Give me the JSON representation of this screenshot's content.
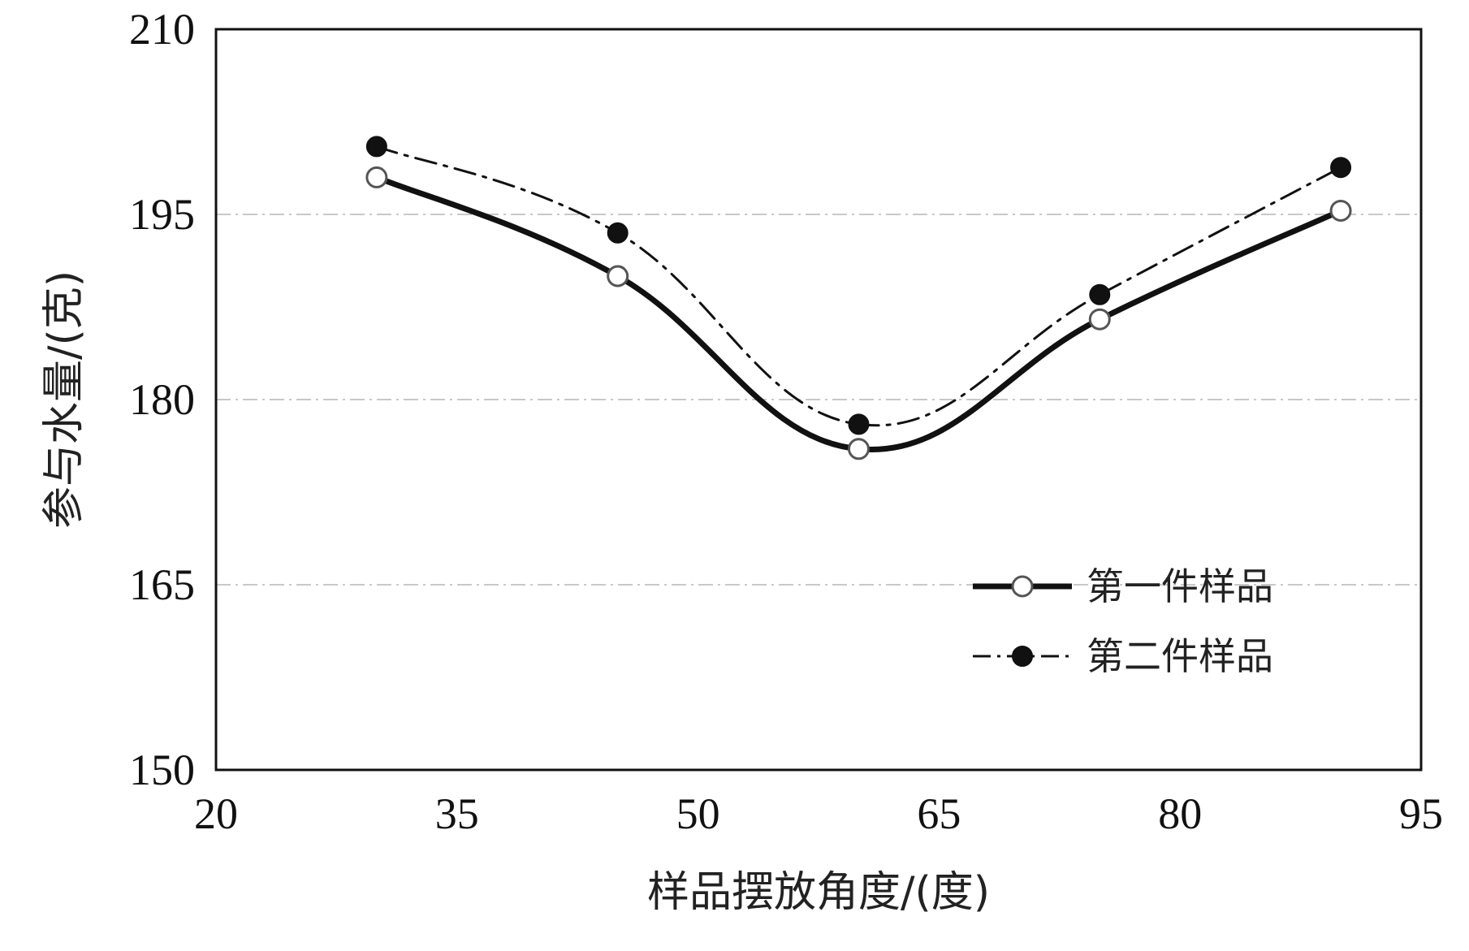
{
  "chart_data": {
    "type": "line",
    "title": "",
    "xlabel": "样品摆放角度/(度)",
    "ylabel": "参与水量/(克)",
    "xlim": [
      20,
      95
    ],
    "ylim": [
      150,
      210
    ],
    "x_ticks": [
      "20",
      "35",
      "50",
      "65",
      "80",
      "95"
    ],
    "y_ticks": [
      "150",
      "165",
      "180",
      "195",
      "210"
    ],
    "grid": "horizontal dash-dot lines at y = 165, 180, 195",
    "legend_position": "lower-right",
    "series": [
      {
        "name": "第一件样品",
        "style": "solid line, open circle markers",
        "color": "#111111",
        "x": [
          30,
          45,
          60,
          75,
          90
        ],
        "y": [
          198,
          190,
          176,
          186.5,
          195.3
        ]
      },
      {
        "name": "第二件样品",
        "style": "dash-dot line, filled circle markers",
        "color": "#111111",
        "x": [
          30,
          45,
          60,
          75,
          90
        ],
        "y": [
          200.5,
          193.5,
          178,
          188.5,
          198.8
        ]
      }
    ]
  }
}
